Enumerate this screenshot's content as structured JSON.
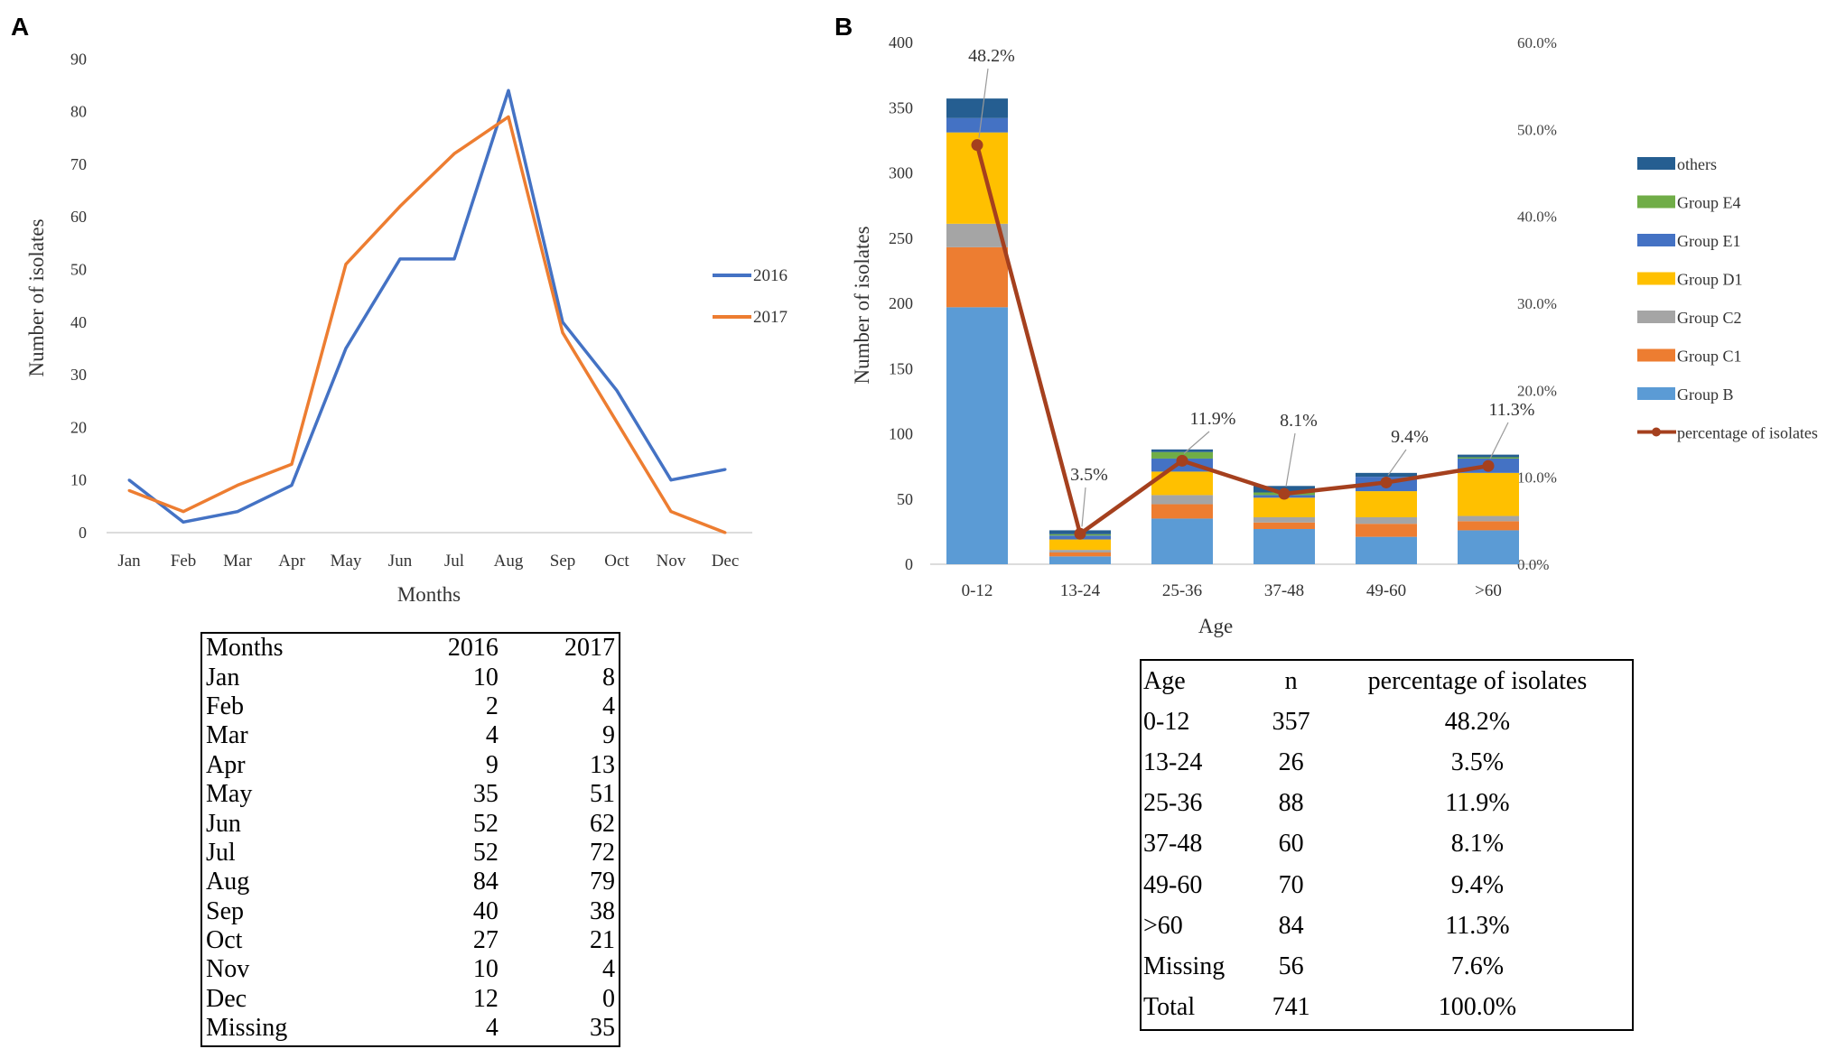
{
  "panels": {
    "a": "A",
    "b": "B"
  },
  "chart_data": [
    {
      "type": "line",
      "title": "",
      "xlabel": "Months",
      "ylabel": "Number of isolates",
      "categories": [
        "Jan",
        "Feb",
        "Mar",
        "Apr",
        "May",
        "Jun",
        "Jul",
        "Aug",
        "Sep",
        "Oct",
        "Nov",
        "Dec"
      ],
      "ylim": [
        0,
        90
      ],
      "yticks": [
        "0",
        "10",
        "20",
        "30",
        "40",
        "50",
        "60",
        "70",
        "80",
        "90"
      ],
      "legend_position": "right",
      "series": [
        {
          "name": "2016",
          "color": "#4472c4",
          "values": [
            10,
            2,
            4,
            9,
            35,
            52,
            52,
            84,
            40,
            27,
            10,
            12
          ]
        },
        {
          "name": "2017",
          "color": "#ed7d31",
          "values": [
            8,
            4,
            9,
            13,
            51,
            62,
            72,
            79,
            38,
            21,
            4,
            0
          ]
        }
      ]
    },
    {
      "type": "bar",
      "stacked": true,
      "title": "",
      "xlabel": "Age",
      "ylabel": "Number of isolates",
      "categories": [
        "0-12",
        "13-24",
        "25-36",
        "37-48",
        "49-60",
        ">60"
      ],
      "ylim": [
        0,
        400
      ],
      "yticks": [
        "0",
        "50",
        "100",
        "150",
        "200",
        "250",
        "300",
        "350",
        "400"
      ],
      "y2lim": [
        0,
        60
      ],
      "y2ticks": [
        "0.0%",
        "10.0%",
        "20.0%",
        "30.0%",
        "40.0%",
        "50.0%",
        "60.0%"
      ],
      "legend_position": "right",
      "series": [
        {
          "name": "Group B",
          "color": "#5b9bd5",
          "values": [
            197,
            6,
            35,
            27,
            21,
            26
          ]
        },
        {
          "name": "Group C1",
          "color": "#ed7d31",
          "values": [
            46,
            3,
            11,
            5,
            10,
            7
          ]
        },
        {
          "name": "Group C2",
          "color": "#a5a5a5",
          "values": [
            18,
            2,
            7,
            4,
            5,
            4
          ]
        },
        {
          "name": "Group D1",
          "color": "#ffc000",
          "values": [
            70,
            8,
            18,
            15,
            20,
            33
          ]
        },
        {
          "name": "Group E1",
          "color": "#4472c4",
          "values": [
            11,
            3,
            10,
            2,
            11,
            11
          ]
        },
        {
          "name": "Group E4",
          "color": "#70ad47",
          "values": [
            0,
            1,
            5,
            2,
            0,
            1
          ]
        },
        {
          "name": "others",
          "color": "#255e91",
          "values": [
            15,
            3,
            2,
            5,
            3,
            2
          ]
        }
      ],
      "line_series": {
        "name": "percentage of isolates",
        "color": "#a5401e",
        "values": [
          48.2,
          3.5,
          11.9,
          8.1,
          9.4,
          11.3
        ],
        "labels": [
          "48.2%",
          "3.5%",
          "11.9%",
          "8.1%",
          "9.4%",
          "11.3%"
        ]
      }
    }
  ],
  "tableA": {
    "header": [
      "Months",
      "2016",
      "2017"
    ],
    "rows": [
      [
        "Jan",
        "10",
        "8"
      ],
      [
        "Feb",
        "2",
        "4"
      ],
      [
        "Mar",
        "4",
        "9"
      ],
      [
        "Apr",
        "9",
        "13"
      ],
      [
        "May",
        "35",
        "51"
      ],
      [
        "Jun",
        "52",
        "62"
      ],
      [
        "Jul",
        "52",
        "72"
      ],
      [
        "Aug",
        "84",
        "79"
      ],
      [
        "Sep",
        "40",
        "38"
      ],
      [
        "Oct",
        "27",
        "21"
      ],
      [
        "Nov",
        "10",
        "4"
      ],
      [
        "Dec",
        "12",
        "0"
      ],
      [
        "Missing",
        "4",
        "35"
      ]
    ]
  },
  "tableB": {
    "header": [
      "Age",
      "n",
      "percentage of isolates"
    ],
    "rows": [
      [
        "0-12",
        "357",
        "48.2%"
      ],
      [
        "13-24",
        "26",
        "3.5%"
      ],
      [
        "25-36",
        "88",
        "11.9%"
      ],
      [
        "37-48",
        "60",
        "8.1%"
      ],
      [
        "49-60",
        "70",
        "9.4%"
      ],
      [
        ">60",
        "84",
        "11.3%"
      ],
      [
        "Missing",
        "56",
        "7.6%"
      ],
      [
        "Total",
        "741",
        "100.0%"
      ]
    ]
  }
}
